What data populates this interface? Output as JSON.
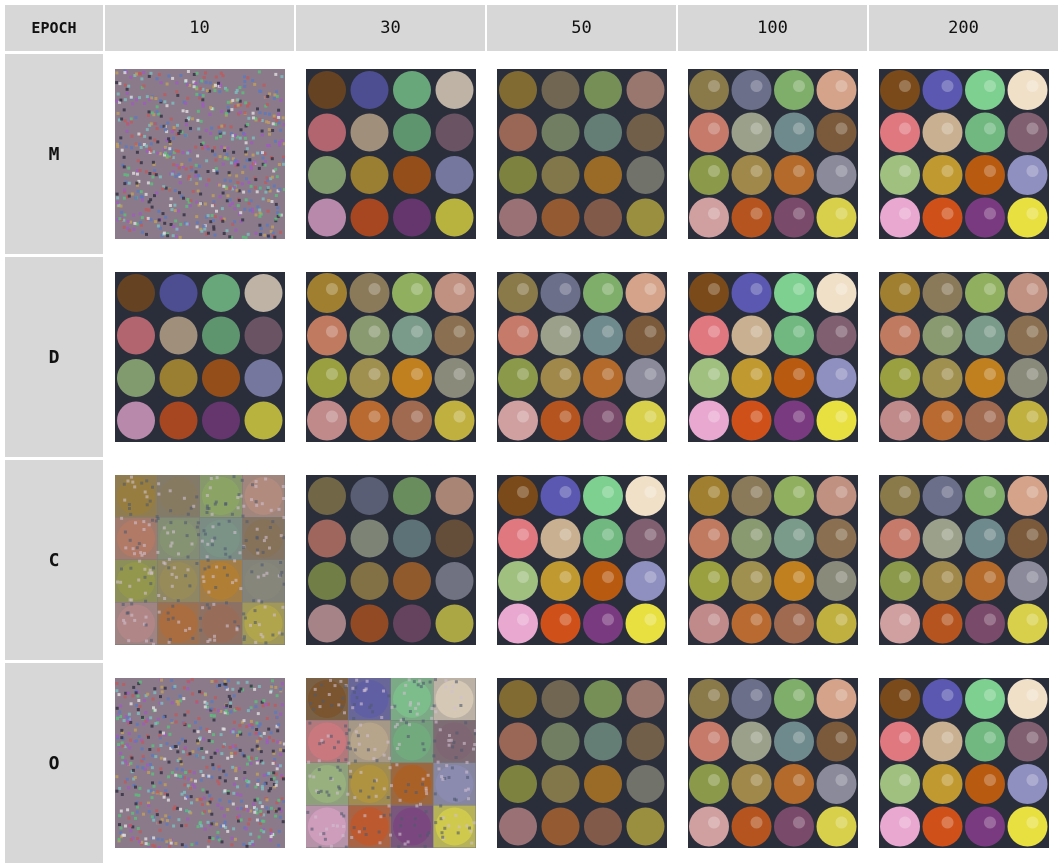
{
  "table": {
    "corner_label": "EPOCH",
    "columns": [
      "10",
      "30",
      "50",
      "100",
      "200"
    ],
    "rows": [
      {
        "label": "M",
        "cells": [
          "noise",
          "blob",
          "blob",
          "fundus",
          "fundus"
        ]
      },
      {
        "label": "D",
        "cells": [
          "blob",
          "fundus",
          "fundus",
          "fundus",
          "fundus"
        ]
      },
      {
        "label": "C",
        "cells": [
          "noisyblob",
          "blob",
          "fundus",
          "fundus",
          "fundus"
        ]
      },
      {
        "label": "O",
        "cells": [
          "noise",
          "noisyblob",
          "blob",
          "fundus",
          "fundus"
        ]
      }
    ]
  }
}
